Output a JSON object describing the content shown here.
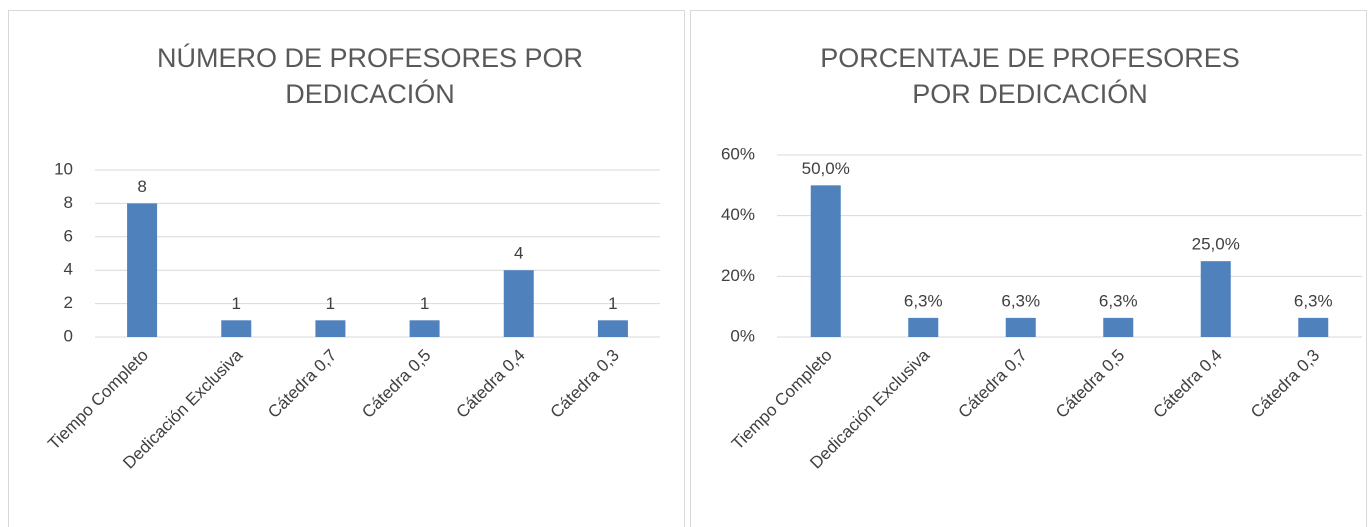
{
  "chart_data": [
    {
      "type": "bar",
      "title": "NÚMERO DE PROFESORES POR DEDICACIÓN",
      "categories": [
        "Tiempo Completo",
        "Dedicación Exclusiva",
        "Cátedra 0,7",
        "Cátedra 0,5",
        "Cátedra 0,4",
        "Cátedra 0,3"
      ],
      "values": [
        8,
        1,
        1,
        1,
        4,
        1
      ],
      "color": "#4f81bd",
      "ylim": [
        0,
        10
      ],
      "yticks": [
        0,
        2,
        4,
        6,
        8,
        10
      ],
      "grid": true
    },
    {
      "type": "bar",
      "title": "PORCENTAJE DE PROFESORES POR DEDICACIÓN",
      "categories": [
        "Tiempo Completo",
        "Dedicación Exclusiva",
        "Cátedra 0,7",
        "Cátedra 0,5",
        "Cátedra 0,4",
        "Cátedra 0,3"
      ],
      "values": [
        50,
        6.3,
        6.3,
        6.3,
        25,
        6.3
      ],
      "value_labels": [
        "50,0%",
        "6,3%",
        "6,3%",
        "6,3%",
        "25,0%",
        "6,3%"
      ],
      "color": "#4f81bd",
      "ylim": [
        0,
        60
      ],
      "yticks": [
        {
          "value": 0,
          "label": "0%"
        },
        {
          "value": 20,
          "label": "20%"
        },
        {
          "value": 40,
          "label": "40%"
        },
        {
          "value": 60,
          "label": "60%"
        }
      ],
      "grid": true
    }
  ]
}
